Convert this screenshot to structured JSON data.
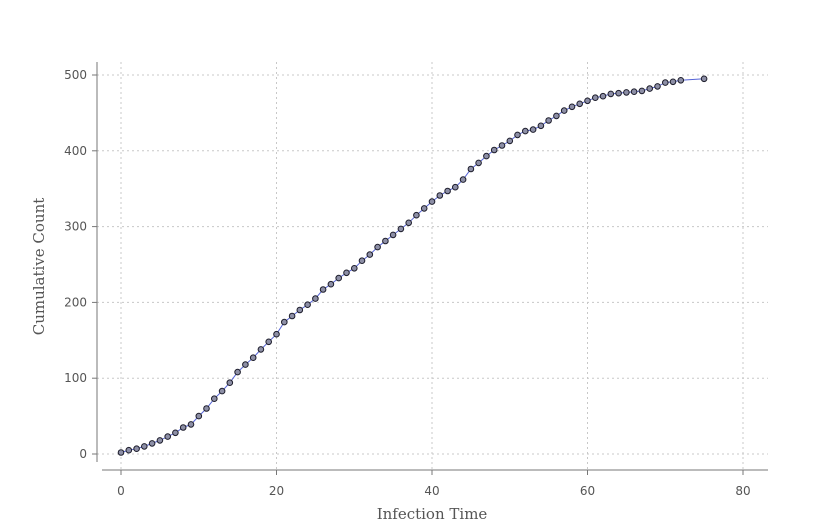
{
  "chart_data": {
    "type": "scatter",
    "title": "",
    "xlabel": "Infection Time",
    "ylabel": "Cumulative Count",
    "xlim": [
      0,
      80
    ],
    "ylim": [
      0,
      500
    ],
    "x_ticks": [
      0,
      20,
      40,
      60,
      80
    ],
    "y_ticks": [
      0,
      100,
      200,
      300,
      400,
      500
    ],
    "x_tick_labels": [
      "0",
      "20",
      "40",
      "60",
      "80"
    ],
    "y_tick_labels": [
      "0",
      "100",
      "200",
      "300",
      "400",
      "500"
    ],
    "grid": true,
    "legend": "none",
    "line_color": "#5563d6",
    "marker_fill": "#8d8fa6",
    "marker_edge": "#1d1d2b",
    "x": [
      0,
      1,
      2,
      3,
      4,
      5,
      6,
      7,
      8,
      9,
      10,
      11,
      12,
      13,
      14,
      15,
      16,
      17,
      18,
      19,
      20,
      21,
      22,
      23,
      24,
      25,
      26,
      27,
      28,
      29,
      30,
      31,
      32,
      33,
      34,
      35,
      36,
      37,
      38,
      39,
      40,
      41,
      42,
      43,
      44,
      45,
      46,
      47,
      48,
      49,
      50,
      51,
      52,
      53,
      54,
      55,
      56,
      57,
      58,
      59,
      60,
      61,
      62,
      63,
      64,
      65,
      66,
      67,
      68,
      69,
      70,
      71,
      72,
      75
    ],
    "y": [
      2,
      5,
      7,
      10,
      14,
      18,
      23,
      28,
      35,
      39,
      50,
      60,
      73,
      83,
      94,
      108,
      118,
      127,
      138,
      148,
      158,
      174,
      182,
      190,
      197,
      205,
      217,
      224,
      232,
      239,
      245,
      255,
      263,
      273,
      281,
      289,
      297,
      305,
      315,
      324,
      333,
      341,
      347,
      352,
      362,
      376,
      384,
      393,
      401,
      407,
      413,
      421,
      426,
      428,
      433,
      440,
      446,
      453,
      458,
      462,
      466,
      470,
      472,
      475,
      476,
      477,
      478,
      479,
      482,
      485,
      490,
      491,
      493,
      495
    ]
  }
}
